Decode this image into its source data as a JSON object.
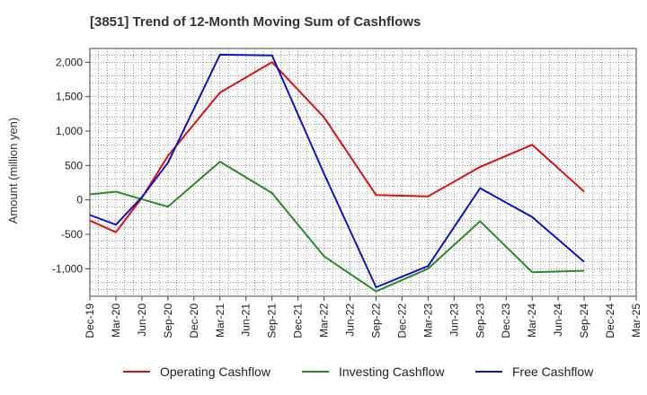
{
  "chart_data": {
    "type": "line",
    "title": "[3851]  Trend of 12-Month Moving Sum of Cashflows",
    "ylabel": "Amount (million yen)",
    "xlabel": "",
    "ylim": [
      -1400,
      2200
    ],
    "yticks": [
      2000,
      1500,
      1000,
      500,
      0,
      -500,
      -1000
    ],
    "ytick_labels": [
      "2,000",
      "1,500",
      "1,000",
      "500",
      "0",
      "-500",
      "-1,000"
    ],
    "categories": [
      "Dec-19",
      "Mar-20",
      "Jun-20",
      "Sep-20",
      "Dec-20",
      "Mar-21",
      "Jun-21",
      "Sep-21",
      "Dec-21",
      "Mar-22",
      "Jun-22",
      "Sep-22",
      "Dec-22",
      "Mar-23",
      "Jun-23",
      "Sep-23",
      "Dec-23",
      "Mar-24",
      "Jun-24",
      "Sep-24",
      "Dec-24",
      "Mar-25"
    ],
    "grid": true,
    "legend_position": "bottom",
    "series": [
      {
        "name": "Operating Cashflow",
        "color": "#dd1111",
        "points": [
          {
            "x": "Dec-19",
            "y": -300
          },
          {
            "x": "Mar-20",
            "y": -470
          },
          {
            "x": "Jun-20",
            "y": 30
          },
          {
            "x": "Sep-20",
            "y": 640
          },
          {
            "x": "Mar-21",
            "y": 1560
          },
          {
            "x": "Sep-21",
            "y": 2000
          },
          {
            "x": "Mar-22",
            "y": 1200
          },
          {
            "x": "Sep-22",
            "y": 70
          },
          {
            "x": "Mar-23",
            "y": 50
          },
          {
            "x": "Sep-23",
            "y": 480
          },
          {
            "x": "Mar-24",
            "y": 800
          },
          {
            "x": "Sep-24",
            "y": 120
          }
        ]
      },
      {
        "name": "Investing Cashflow",
        "color": "#2a8a2a",
        "points": [
          {
            "x": "Dec-19",
            "y": 80
          },
          {
            "x": "Mar-20",
            "y": 120
          },
          {
            "x": "Jun-20",
            "y": 10
          },
          {
            "x": "Sep-20",
            "y": -100
          },
          {
            "x": "Mar-21",
            "y": 555
          },
          {
            "x": "Sep-21",
            "y": 100
          },
          {
            "x": "Mar-22",
            "y": -820
          },
          {
            "x": "Sep-22",
            "y": -1330
          },
          {
            "x": "Mar-23",
            "y": -1000
          },
          {
            "x": "Sep-23",
            "y": -310
          },
          {
            "x": "Mar-24",
            "y": -1050
          },
          {
            "x": "Sep-24",
            "y": -1030
          }
        ]
      },
      {
        "name": "Free Cashflow",
        "color": "#1111cc",
        "points": [
          {
            "x": "Dec-19",
            "y": -220
          },
          {
            "x": "Mar-20",
            "y": -360
          },
          {
            "x": "Jun-20",
            "y": 40
          },
          {
            "x": "Sep-20",
            "y": 540
          },
          {
            "x": "Mar-21",
            "y": 2110
          },
          {
            "x": "Sep-21",
            "y": 2100
          },
          {
            "x": "Mar-22",
            "y": 380
          },
          {
            "x": "Sep-22",
            "y": -1270
          },
          {
            "x": "Mar-23",
            "y": -960
          },
          {
            "x": "Sep-23",
            "y": 170
          },
          {
            "x": "Mar-24",
            "y": -250
          },
          {
            "x": "Sep-24",
            "y": -900
          }
        ]
      }
    ]
  }
}
